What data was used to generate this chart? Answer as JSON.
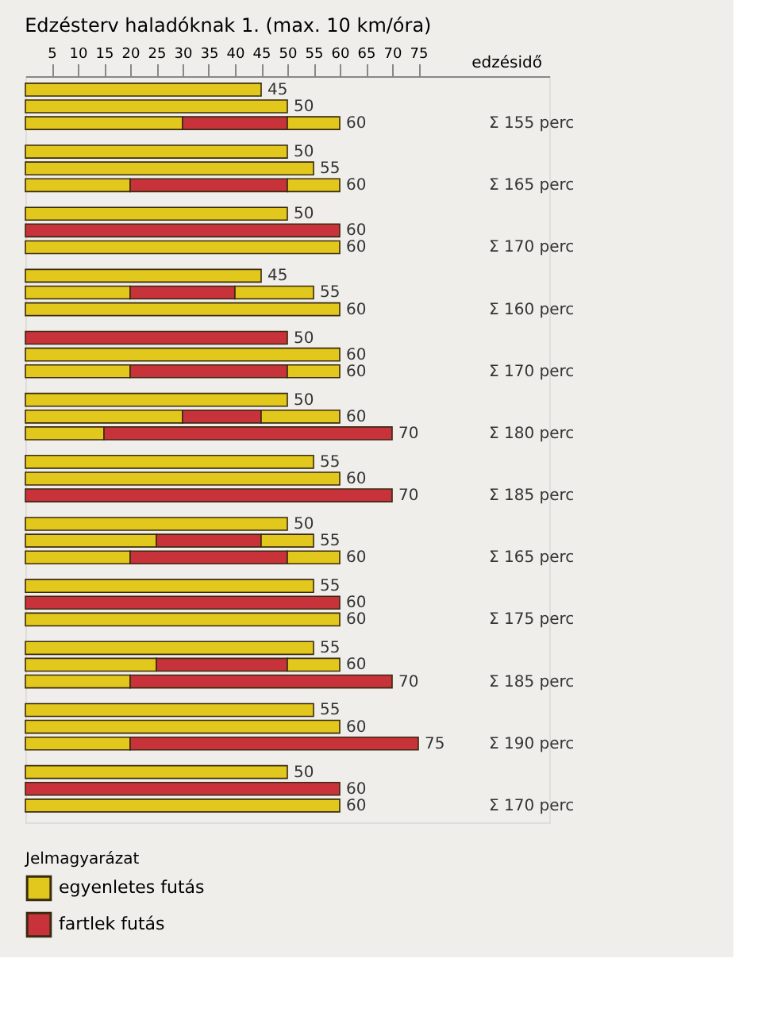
{
  "chart_data": {
    "type": "bar",
    "orientation": "horizontal",
    "stacked": true,
    "title": "Edzésterv   haladóknak 1.  (max. 10 km/óra)",
    "xlabel": "edzésidő",
    "legend_title": "Jelmagyarázat",
    "legend": "bottom left",
    "grid": false,
    "xlim": [
      0,
      100
    ],
    "xticks": [
      5,
      10,
      15,
      20,
      25,
      30,
      35,
      40,
      45,
      50,
      55,
      60,
      65,
      70,
      75
    ],
    "categories": [
      null,
      null,
      null,
      null,
      null,
      null,
      null,
      null,
      null,
      null,
      null,
      null,
      null,
      null,
      null,
      null,
      null,
      null,
      null,
      null,
      null,
      null,
      null,
      null,
      null,
      null,
      null,
      null,
      null,
      null,
      null,
      null,
      null,
      null,
      null,
      null
    ],
    "series": [
      {
        "name": "egyenletes futás",
        "color": "#e2c81c",
        "values": [
          45,
          50,
          30,
          50,
          55,
          20,
          50,
          0,
          60,
          45,
          20,
          60,
          0,
          60,
          20,
          50,
          30,
          15,
          55,
          60,
          0,
          50,
          25,
          20,
          55,
          0,
          60,
          55,
          25,
          20,
          55,
          60,
          20,
          50,
          0,
          60
        ]
      },
      {
        "name": "fartlek futás",
        "color": "#c8323a",
        "values": [
          0,
          0,
          20,
          0,
          0,
          30,
          0,
          60,
          0,
          0,
          20,
          0,
          50,
          0,
          30,
          0,
          15,
          55,
          0,
          0,
          70,
          0,
          20,
          30,
          0,
          60,
          0,
          0,
          25,
          50,
          0,
          0,
          55,
          0,
          60,
          0
        ]
      },
      {
        "color": "#e2c81c",
        "values": [
          0,
          0,
          10,
          0,
          0,
          10,
          0,
          0,
          0,
          0,
          15,
          0,
          0,
          0,
          10,
          0,
          15,
          0,
          0,
          0,
          0,
          0,
          10,
          10,
          0,
          0,
          0,
          0,
          10,
          0,
          0,
          0,
          0,
          0,
          0,
          0
        ]
      }
    ],
    "totals": [
      "45",
      "50",
      "60",
      "50",
      "55",
      "60",
      "50",
      "60",
      "60",
      "45",
      "55",
      "60",
      "50",
      "60",
      "60",
      "50",
      "60",
      "70",
      "55",
      "60",
      "70",
      "50",
      "55",
      "60",
      "55",
      "60",
      "60",
      "55",
      "60",
      "70",
      "55",
      "60",
      "75",
      "50",
      "60",
      "60"
    ],
    "annotations": [
      "Σ 155 perc",
      "Σ 165 perc",
      "Σ 170 perc",
      "Σ 160 perc",
      "Σ 170 perc",
      "Σ 180 perc",
      "Σ 185 perc",
      "Σ 165 perc",
      "Σ 175 perc",
      "Σ 185 perc",
      "Σ 190 perc",
      "Σ 170 perc"
    ]
  }
}
